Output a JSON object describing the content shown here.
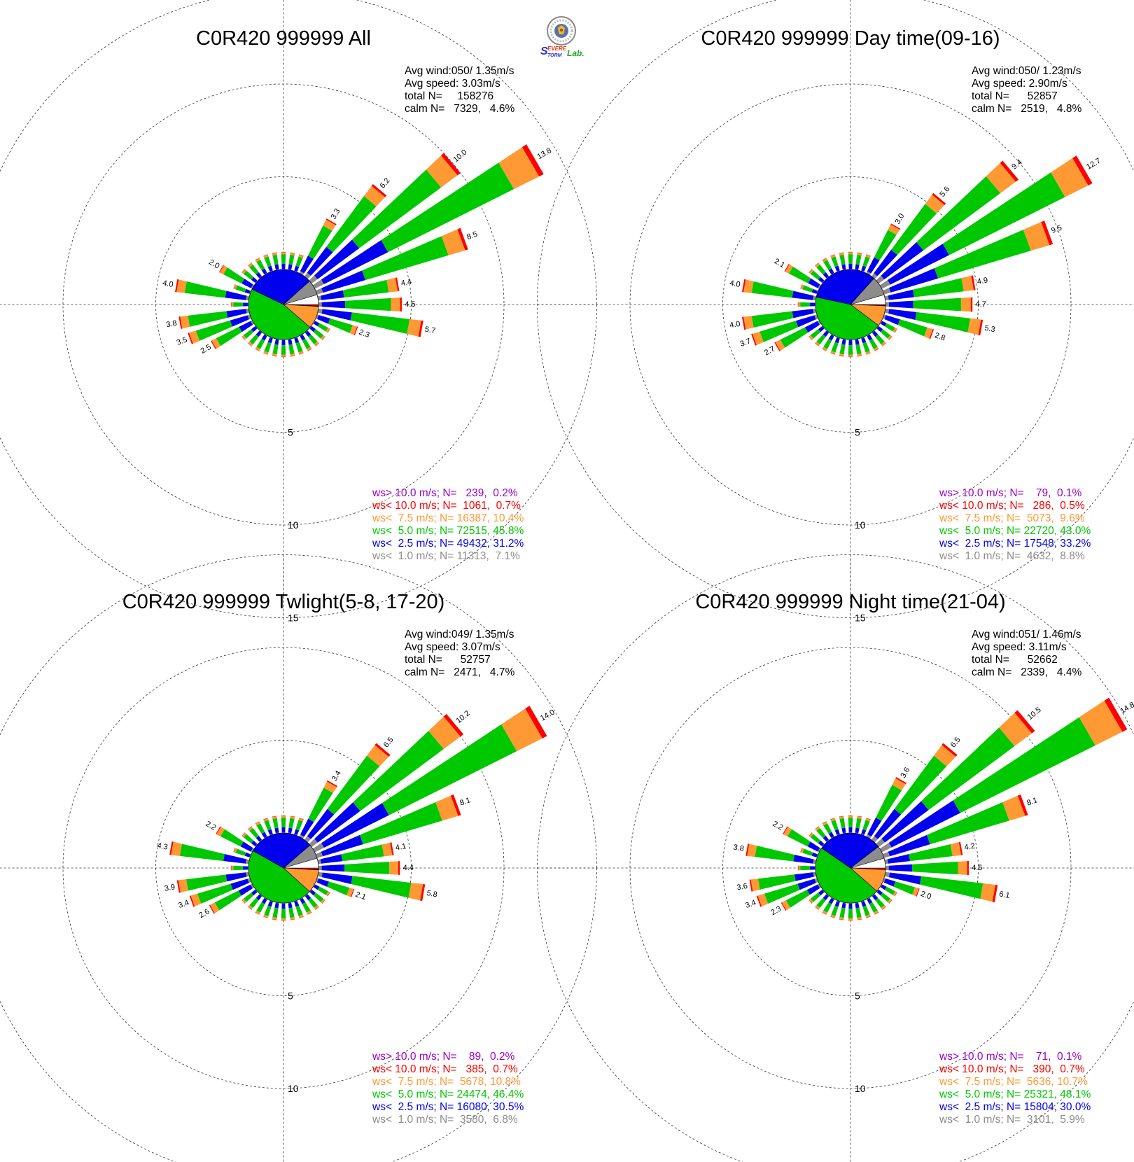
{
  "logo": {
    "text": "Severe Storm Lab.",
    "parts": [
      "S",
      "EVERE",
      "TORM",
      "Lab."
    ]
  },
  "speed_bins": [
    {
      "label": "ws<  1.0 m/s;",
      "color": "#8c8c8c"
    },
    {
      "label": "ws<  2.5 m/s;",
      "color": "#0000ee"
    },
    {
      "label": "ws<  5.0 m/s;",
      "color": "#00c800"
    },
    {
      "label": "ws<  7.5 m/s;",
      "color": "#ff9933"
    },
    {
      "label": "ws< 10.0 m/s;",
      "color": "#ff0000"
    },
    {
      "label": "ws> 10.0 m/s;",
      "color": "#9900cc"
    }
  ],
  "radial_ticks": [
    "5",
    "10",
    "15"
  ],
  "chart_data": [
    {
      "type": "polar-stacked-bar",
      "title": "C0R420 999999 All",
      "stats": {
        "avg_wind": "Avg wind:050/ 1.35m/s",
        "avg_speed": "Avg speed: 3.03m/s",
        "total": "total N=     158276",
        "calm": "calm N=   7329,   4.6%"
      },
      "legend": [
        {
          "text": "ws> 10.0 m/s; N=   239,  0.2%",
          "color": "#9900cc"
        },
        {
          "text": "ws< 10.0 m/s; N=  1061,  0.7%",
          "color": "#ff0000"
        },
        {
          "text": "ws<  7.5 m/s; N= 16387, 10.4%",
          "color": "#ff9933"
        },
        {
          "text": "ws<  5.0 m/s; N= 72515, 45.8%",
          "color": "#00c800"
        },
        {
          "text": "ws<  2.5 m/s; N= 49432, 31.2%",
          "color": "#0000ee"
        },
        {
          "text": "ws<  1.0 m/s; N= 11313,  7.1%",
          "color": "#8c8c8c"
        }
      ],
      "direction_labels": [
        {
          "dir": 30,
          "value": "3.3"
        },
        {
          "dir": 40,
          "value": "6.2"
        },
        {
          "dir": 50,
          "value": "10.0"
        },
        {
          "dir": 60,
          "value": "13.8"
        },
        {
          "dir": 70,
          "value": "8.5"
        },
        {
          "dir": 80,
          "value": "4.4"
        },
        {
          "dir": 90,
          "value": "4.5"
        },
        {
          "dir": 100,
          "value": "5.7"
        },
        {
          "dir": 110,
          "value": "2.3"
        },
        {
          "dir": 240,
          "value": "2.5"
        },
        {
          "dir": 250,
          "value": "3.5"
        },
        {
          "dir": 260,
          "value": "3.8"
        },
        {
          "dir": 280,
          "value": "4.0"
        },
        {
          "dir": 300,
          "value": "2.0"
        }
      ],
      "inner_pie_percent": [
        7.1,
        31.2,
        45.8,
        10.4,
        0.7,
        0.2
      ]
    },
    {
      "type": "polar-stacked-bar",
      "title": "C0R420 999999 Day time(09-16)",
      "stats": {
        "avg_wind": "Avg wind:050/ 1.23m/s",
        "avg_speed": "Avg speed: 2.90m/s",
        "total": "total N=      52857",
        "calm": "calm N=   2519,   4.8%"
      },
      "legend": [
        {
          "text": "ws> 10.0 m/s; N=    79,  0.1%",
          "color": "#9900cc"
        },
        {
          "text": "ws< 10.0 m/s; N=   286,  0.5%",
          "color": "#ff0000"
        },
        {
          "text": "ws<  7.5 m/s; N=  5073,  9.6%",
          "color": "#ff9933"
        },
        {
          "text": "ws<  5.0 m/s; N= 22720, 43.0%",
          "color": "#00c800"
        },
        {
          "text": "ws<  2.5 m/s; N= 17548, 33.2%",
          "color": "#0000ee"
        },
        {
          "text": "ws<  1.0 m/s; N=  4632,  8.8%",
          "color": "#8c8c8c"
        }
      ],
      "direction_labels": [
        {
          "dir": 30,
          "value": "3.0"
        },
        {
          "dir": 40,
          "value": "5.6"
        },
        {
          "dir": 50,
          "value": "9.4"
        },
        {
          "dir": 60,
          "value": "12.7"
        },
        {
          "dir": 70,
          "value": "9.5"
        },
        {
          "dir": 80,
          "value": "4.9"
        },
        {
          "dir": 90,
          "value": "4.7"
        },
        {
          "dir": 100,
          "value": "5.3"
        },
        {
          "dir": 110,
          "value": "2.8"
        },
        {
          "dir": 240,
          "value": "2.7"
        },
        {
          "dir": 250,
          "value": "3.7"
        },
        {
          "dir": 260,
          "value": "4.0"
        },
        {
          "dir": 280,
          "value": "4.0"
        },
        {
          "dir": 300,
          "value": "2.1"
        }
      ],
      "inner_pie_percent": [
        8.8,
        33.2,
        43.0,
        9.6,
        0.5,
        0.1
      ]
    },
    {
      "type": "polar-stacked-bar",
      "title": "C0R420 999999 Twlight(5-8, 17-20)",
      "stats": {
        "avg_wind": "Avg wind:049/ 1.35m/s",
        "avg_speed": "Avg speed: 3.07m/s",
        "total": "total N=      52757",
        "calm": "calm N=   2471,   4.7%"
      },
      "legend": [
        {
          "text": "ws> 10.0 m/s; N=    89,  0.2%",
          "color": "#9900cc"
        },
        {
          "text": "ws< 10.0 m/s; N=   385,  0.7%",
          "color": "#ff0000"
        },
        {
          "text": "ws<  7.5 m/s; N=  5678, 10.8%",
          "color": "#ff9933"
        },
        {
          "text": "ws<  5.0 m/s; N= 24474, 46.4%",
          "color": "#00c800"
        },
        {
          "text": "ws<  2.5 m/s; N= 16080, 30.5%",
          "color": "#0000ee"
        },
        {
          "text": "ws<  1.0 m/s; N=  3580,  6.8%",
          "color": "#8c8c8c"
        }
      ],
      "direction_labels": [
        {
          "dir": 30,
          "value": "3.4"
        },
        {
          "dir": 40,
          "value": "6.5"
        },
        {
          "dir": 50,
          "value": "10.2"
        },
        {
          "dir": 60,
          "value": "14.0"
        },
        {
          "dir": 70,
          "value": "8.1"
        },
        {
          "dir": 80,
          "value": "4.1"
        },
        {
          "dir": 90,
          "value": "4.4"
        },
        {
          "dir": 100,
          "value": "5.8"
        },
        {
          "dir": 110,
          "value": "2.1"
        },
        {
          "dir": 240,
          "value": "2.6"
        },
        {
          "dir": 250,
          "value": "3.4"
        },
        {
          "dir": 260,
          "value": "3.9"
        },
        {
          "dir": 280,
          "value": "4.3"
        },
        {
          "dir": 300,
          "value": "2.2"
        }
      ],
      "inner_pie_percent": [
        6.8,
        30.5,
        46.4,
        10.8,
        0.7,
        0.2
      ]
    },
    {
      "type": "polar-stacked-bar",
      "title": "C0R420 999999 Night time(21-04)",
      "stats": {
        "avg_wind": "Avg wind:051/ 1.46m/s",
        "avg_speed": "Avg speed: 3.11m/s",
        "total": "total N=      52662",
        "calm": "calm N=   2339,   4.4%"
      },
      "legend": [
        {
          "text": "ws> 10.0 m/s; N=    71,  0.1%",
          "color": "#9900cc"
        },
        {
          "text": "ws< 10.0 m/s; N=   390,  0.7%",
          "color": "#ff0000"
        },
        {
          "text": "ws<  7.5 m/s; N=  5636, 10.7%",
          "color": "#ff9933"
        },
        {
          "text": "ws<  5.0 m/s; N= 25321, 48.1%",
          "color": "#00c800"
        },
        {
          "text": "ws<  2.5 m/s; N= 15804, 30.0%",
          "color": "#0000ee"
        },
        {
          "text": "ws<  1.0 m/s; N=  3101,  5.9%",
          "color": "#8c8c8c"
        }
      ],
      "direction_labels": [
        {
          "dir": 30,
          "value": "3.6"
        },
        {
          "dir": 40,
          "value": "6.5"
        },
        {
          "dir": 50,
          "value": "10.5"
        },
        {
          "dir": 60,
          "value": "14.8"
        },
        {
          "dir": 70,
          "value": "8.1"
        },
        {
          "dir": 80,
          "value": "4.2"
        },
        {
          "dir": 90,
          "value": "4.5"
        },
        {
          "dir": 100,
          "value": "6.1"
        },
        {
          "dir": 110,
          "value": "2.0"
        },
        {
          "dir": 240,
          "value": "2.3"
        },
        {
          "dir": 250,
          "value": "3.4"
        },
        {
          "dir": 260,
          "value": "3.6"
        },
        {
          "dir": 280,
          "value": "3.8"
        },
        {
          "dir": 300,
          "value": "2.2"
        }
      ],
      "inner_pie_percent": [
        5.9,
        30.0,
        48.1,
        10.7,
        0.7,
        0.1
      ]
    }
  ]
}
